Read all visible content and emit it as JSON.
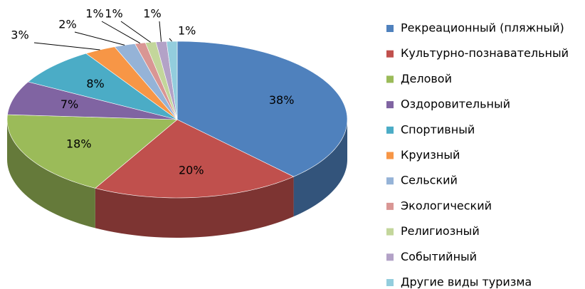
{
  "chart_data": {
    "type": "pie",
    "categories": [
      "Рекреационный (пляжный)",
      "Культурно-познавательный",
      "Деловой",
      "Оздоровительный",
      "Спортивный",
      "Круизный",
      "Сельский",
      "Экологический",
      "Религиозный",
      "Событийный",
      "Другие виды туризма"
    ],
    "values": [
      38,
      20,
      18,
      7,
      8,
      3,
      2,
      1,
      1,
      1,
      1
    ],
    "value_labels": [
      "38%",
      "20%",
      "18%",
      "7%",
      "8%",
      "3%",
      "2%",
      "1%",
      "1%",
      "1%",
      "1%"
    ],
    "colors": [
      "#4f81bd",
      "#c0504d",
      "#9bbb59",
      "#8064a2",
      "#4bacc6",
      "#f79646",
      "#95b3d7",
      "#d99694",
      "#c3d69b",
      "#b3a2c7",
      "#93cddd"
    ],
    "legend": "right"
  }
}
